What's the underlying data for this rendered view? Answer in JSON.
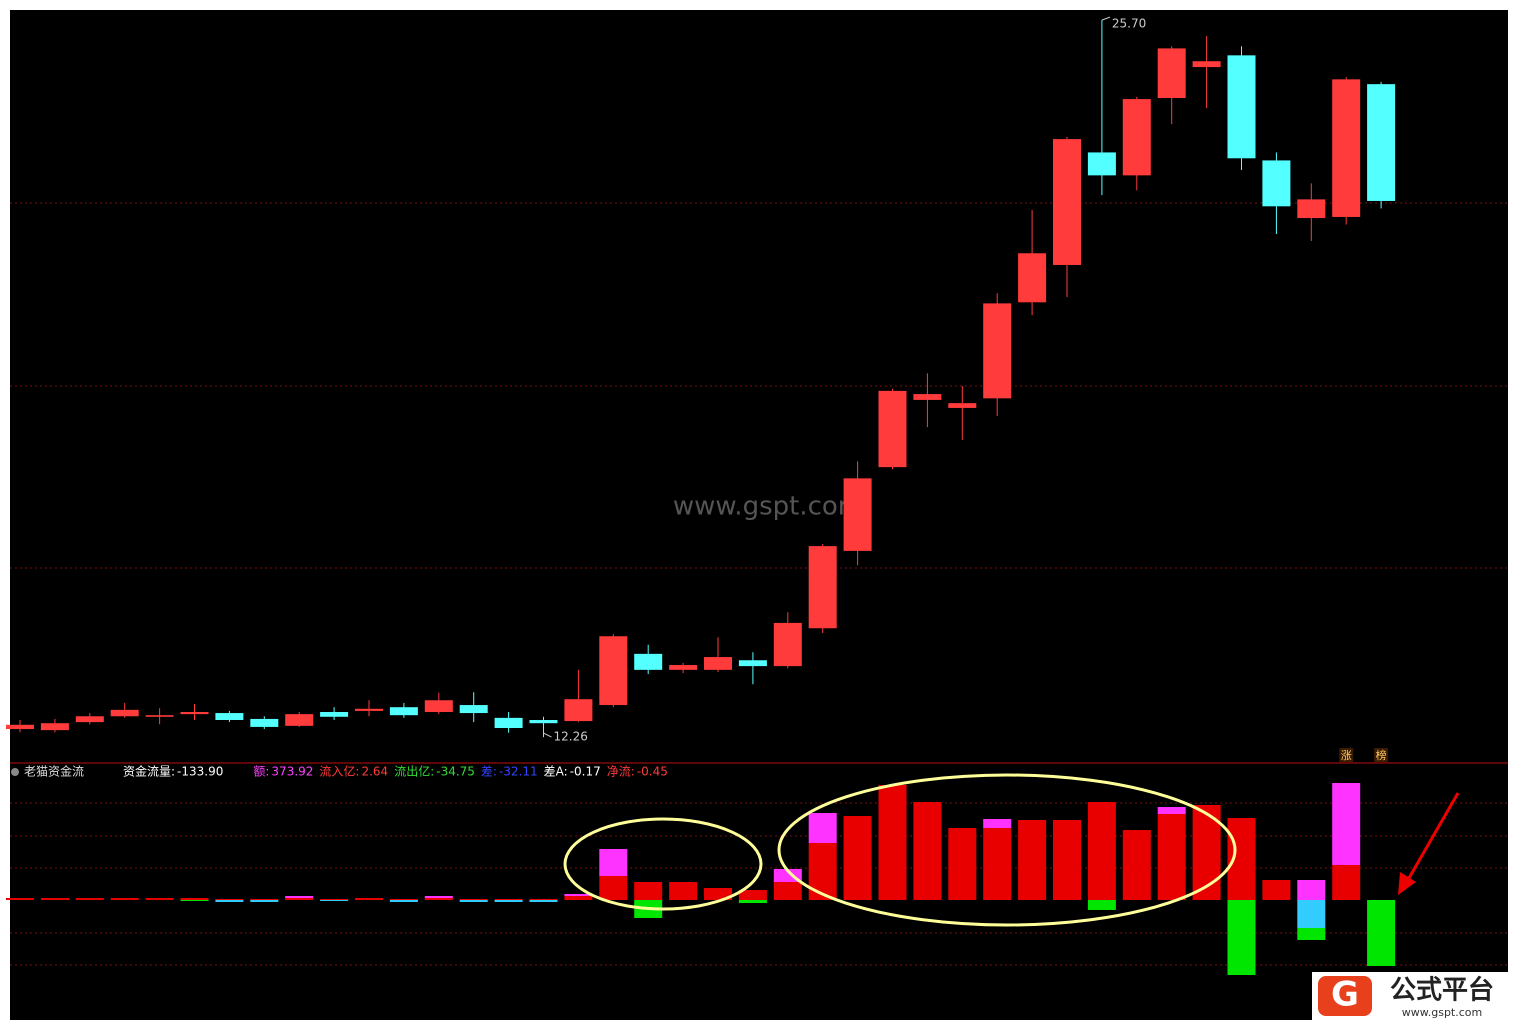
{
  "chart_data": [
    {
      "type": "candlestick",
      "x": null,
      "open": [
        12.41,
        12.39,
        12.54,
        12.65,
        12.64,
        12.69,
        12.71,
        12.6,
        12.47,
        12.73,
        12.75,
        12.82,
        12.73,
        12.86,
        12.62,
        12.58,
        12.56,
        12.86,
        13.82,
        13.52,
        13.52,
        13.7,
        13.59,
        14.3,
        15.75,
        17.32,
        18.58,
        18.43,
        18.61,
        20.41,
        21.11,
        23.22,
        22.79,
        24.24,
        24.82,
        25.04,
        23.07,
        21.99,
        22.01,
        24.5
      ],
      "high": [
        12.58,
        12.6,
        12.71,
        12.9,
        12.8,
        12.88,
        12.75,
        12.65,
        12.73,
        12.82,
        12.95,
        12.9,
        13.09,
        13.1,
        12.73,
        12.64,
        13.52,
        14.19,
        13.99,
        13.65,
        14.13,
        13.85,
        14.6,
        15.88,
        17.43,
        18.79,
        19.08,
        18.84,
        20.58,
        22.14,
        23.51,
        25.7,
        24.26,
        25.21,
        25.4,
        25.21,
        23.22,
        22.64,
        24.63,
        24.54
      ],
      "low": [
        12.35,
        12.35,
        12.5,
        12.62,
        12.5,
        12.58,
        12.54,
        12.41,
        12.45,
        12.58,
        12.65,
        12.62,
        12.69,
        12.54,
        12.34,
        12.26,
        12.54,
        12.82,
        13.44,
        13.46,
        13.48,
        13.25,
        13.55,
        14.21,
        15.48,
        17.28,
        18.07,
        17.83,
        18.28,
        20.17,
        20.51,
        22.42,
        22.51,
        23.75,
        24.05,
        22.89,
        21.69,
        21.56,
        21.87,
        22.17
      ],
      "close": [
        12.49,
        12.52,
        12.65,
        12.77,
        12.67,
        12.73,
        12.58,
        12.45,
        12.69,
        12.64,
        12.79,
        12.67,
        12.95,
        12.71,
        12.43,
        12.52,
        12.97,
        14.15,
        13.52,
        13.61,
        13.76,
        13.59,
        14.4,
        15.84,
        17.11,
        18.75,
        18.69,
        18.52,
        20.39,
        21.33,
        23.47,
        22.79,
        24.22,
        25.17,
        24.93,
        23.11,
        22.21,
        22.34,
        24.59,
        22.31
      ],
      "low_labels": [
        null,
        null,
        null,
        null,
        null,
        null,
        null,
        null,
        null,
        null,
        null,
        null,
        null,
        null,
        null,
        "12.26",
        null,
        null,
        null,
        null,
        null,
        null,
        null,
        null,
        null,
        null,
        null,
        null,
        null,
        null,
        null,
        null,
        null,
        null,
        null,
        null,
        null,
        null,
        null,
        null
      ],
      "high_labels": [
        null,
        null,
        null,
        null,
        null,
        null,
        null,
        null,
        null,
        null,
        null,
        null,
        null,
        null,
        null,
        null,
        null,
        null,
        null,
        null,
        null,
        null,
        null,
        null,
        null,
        null,
        null,
        null,
        null,
        null,
        null,
        "25.70",
        null,
        null,
        null,
        null,
        null,
        null,
        null,
        null
      ],
      "up_color": "#ff3b3b",
      "down_color": "#54ffff",
      "ylim": [
        11.83,
        25.89
      ],
      "watermark": "www.gspt.com"
    },
    {
      "type": "bar",
      "title": "老猫资金流",
      "readouts": [
        {
          "label": "资金流量:",
          "value": "-133.90",
          "color": "#ffffff"
        },
        {
          "label": "额:",
          "value": "373.92",
          "color": "#ff44ff"
        },
        {
          "label": "流入亿:",
          "value": "2.64",
          "color": "#ff3b3b"
        },
        {
          "label": "流出亿:",
          "value": "-34.75",
          "color": "#33dd33"
        },
        {
          "label": "差:",
          "value": "-32.11",
          "color": "#3344ff"
        },
        {
          "label": "差A:",
          "value": "-0.17",
          "color": "#ffffff"
        },
        {
          "label": "净流:",
          "value": "-0.45",
          "color": "#ff3b3b"
        }
      ],
      "series": [
        {
          "color": "#e80000",
          "values": [
            2,
            2,
            2,
            2,
            2,
            2,
            1,
            1,
            2,
            1,
            2,
            1,
            2,
            1,
            1,
            1,
            4,
            24,
            18,
            18,
            12,
            10,
            18,
            57,
            84,
            115,
            98,
            72,
            72,
            80,
            80,
            98,
            70,
            86,
            95,
            82,
            20,
            0,
            35,
            0
          ]
        },
        {
          "color": "#ff33ff",
          "values": [
            0,
            0,
            0,
            0,
            0,
            0,
            0,
            0,
            2,
            0,
            0,
            0,
            2,
            0,
            0,
            0,
            2,
            27,
            0,
            0,
            0,
            0,
            13,
            30,
            0,
            0,
            0,
            0,
            9,
            0,
            0,
            0,
            0,
            7,
            0,
            0,
            0,
            20,
            82,
            0
          ]
        },
        {
          "color": "#33ccff",
          "values": [
            0,
            0,
            0,
            0,
            0,
            0,
            -2,
            -2,
            0,
            -1,
            0,
            -2,
            0,
            -2,
            -2,
            -2,
            0,
            0,
            0,
            0,
            0,
            0,
            0,
            0,
            0,
            0,
            0,
            0,
            0,
            0,
            0,
            0,
            0,
            0,
            0,
            0,
            0,
            -28,
            0,
            0
          ]
        },
        {
          "color": "#00e600",
          "values": [
            0,
            0,
            0,
            0,
            0,
            -1,
            0,
            0,
            0,
            0,
            0,
            0,
            0,
            0,
            0,
            0,
            0,
            0,
            -18,
            0,
            0,
            -3,
            0,
            0,
            0,
            0,
            0,
            0,
            0,
            0,
            0,
            -10,
            0,
            0,
            0,
            -75,
            0,
            -12,
            0,
            -66
          ]
        }
      ],
      "ylim": [
        -120,
        140
      ],
      "flags": [
        "涨",
        "榜"
      ]
    },
    {
      "type": "logo",
      "name": "公式平台",
      "url": "www.gspt.com"
    }
  ]
}
